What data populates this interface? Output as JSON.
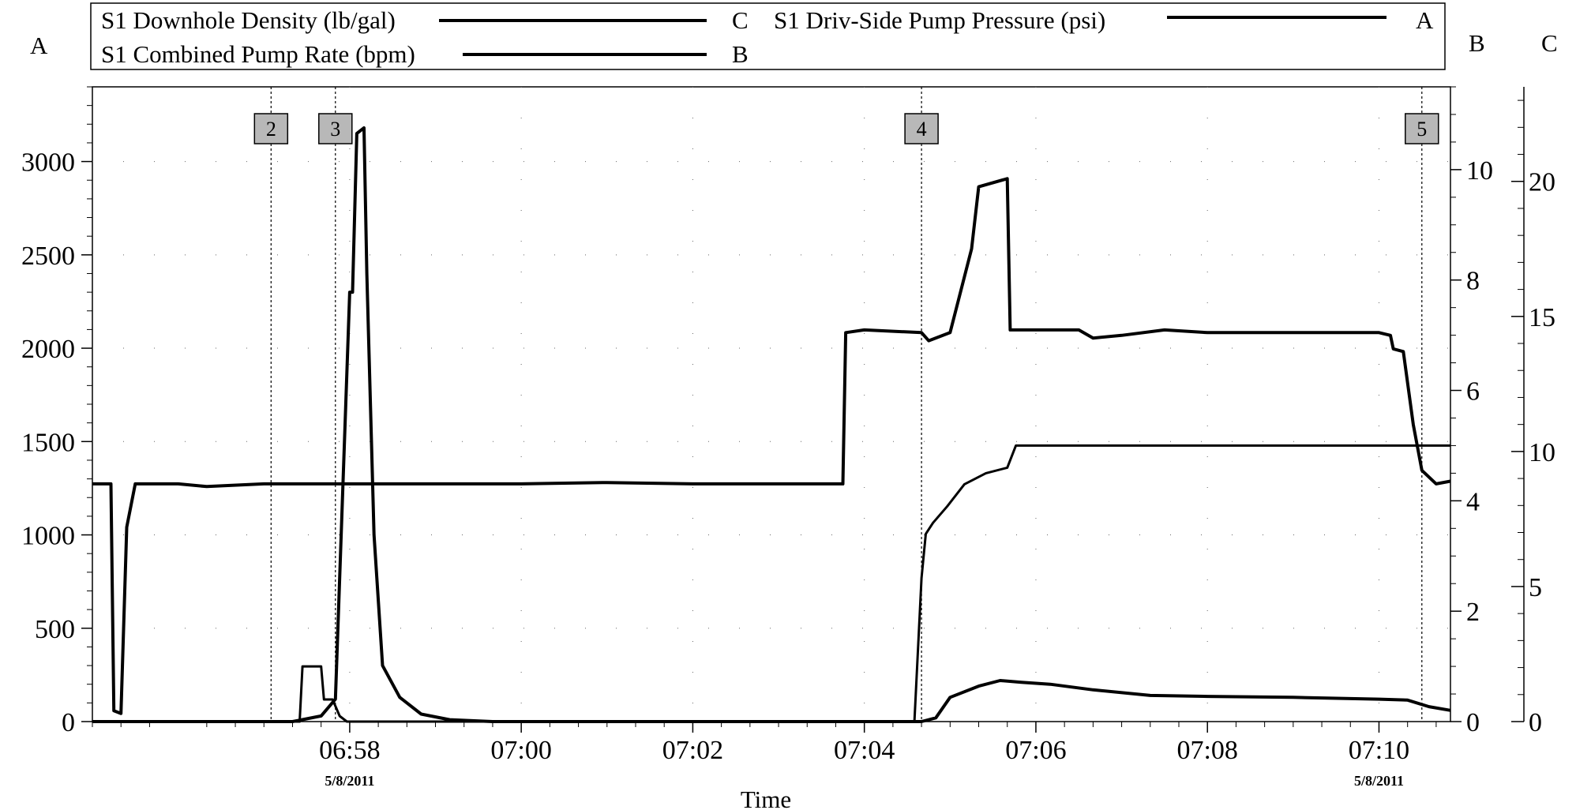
{
  "chart_data": {
    "type": "line",
    "xlabel": "Time",
    "legend": {
      "placement": "top",
      "entries": [
        {
          "name": "S1 Downhole Density (lb/gal)",
          "axis": "C"
        },
        {
          "name": "S1 Driv-Side Pump Pressure (psi)",
          "axis": "A"
        },
        {
          "name": "S1 Combined Pump Rate (bpm)",
          "axis": "B"
        }
      ]
    },
    "axes": {
      "x": {
        "range": [
          "06:55:00",
          "07:10:50"
        ],
        "ticks": [
          "06:58",
          "07:00",
          "07:02",
          "07:04",
          "07:06",
          "07:08",
          "07:10"
        ],
        "date_labels": [
          {
            "at": "06:58",
            "text": "5/8/2011"
          },
          {
            "at": "07:10",
            "text": "5/8/2011"
          }
        ]
      },
      "A": {
        "label": "A",
        "side": "left",
        "range": [
          0,
          3400
        ],
        "ticks": [
          0,
          500,
          1000,
          1500,
          2000,
          2500,
          3000
        ],
        "tick_labels": [
          "0",
          "500",
          "1000",
          "1500",
          "2000",
          "2500",
          "3000"
        ]
      },
      "B": {
        "label": "B",
        "side": "right",
        "range": [
          0,
          11.5
        ],
        "ticks": [
          0,
          2,
          4,
          6,
          8,
          10
        ]
      },
      "C": {
        "label": "C",
        "side": "right",
        "range": [
          0,
          23.5
        ],
        "ticks": [
          0,
          5,
          10,
          15,
          20
        ]
      }
    },
    "grid": "dotted",
    "markers": [
      {
        "label": "2",
        "x": "06:57:05"
      },
      {
        "label": "3",
        "x": "06:57:50"
      },
      {
        "label": "4",
        "x": "07:04:40"
      },
      {
        "label": "5",
        "x": "07:10:30"
      }
    ],
    "series": [
      {
        "name": "S1 Downhole Density (lb/gal)",
        "axis": "C",
        "points": [
          [
            "06:55:00",
            8.8
          ],
          [
            "06:55:13",
            8.8
          ],
          [
            "06:55:15",
            0.4
          ],
          [
            "06:55:20",
            0.3
          ],
          [
            "06:55:24",
            7.2
          ],
          [
            "06:55:30",
            8.8
          ],
          [
            "06:56:00",
            8.8
          ],
          [
            "06:56:20",
            8.7
          ],
          [
            "06:57:00",
            8.8
          ],
          [
            "06:58:00",
            8.8
          ],
          [
            "07:00:00",
            8.8
          ],
          [
            "07:01:00",
            8.85
          ],
          [
            "07:02:00",
            8.8
          ],
          [
            "07:03:00",
            8.8
          ],
          [
            "07:03:45",
            8.8
          ],
          [
            "07:03:47",
            14.4
          ],
          [
            "07:04:00",
            14.5
          ],
          [
            "07:04:40",
            14.4
          ],
          [
            "07:04:45",
            14.1
          ],
          [
            "07:05:00",
            14.4
          ],
          [
            "07:05:15",
            17.5
          ],
          [
            "07:05:20",
            19.8
          ],
          [
            "07:05:40",
            20.1
          ],
          [
            "07:05:42",
            14.5
          ],
          [
            "07:06:00",
            14.5
          ],
          [
            "07:06:30",
            14.5
          ],
          [
            "07:06:40",
            14.2
          ],
          [
            "07:07:00",
            14.3
          ],
          [
            "07:07:30",
            14.5
          ],
          [
            "07:08:00",
            14.4
          ],
          [
            "07:09:00",
            14.4
          ],
          [
            "07:10:00",
            14.4
          ],
          [
            "07:10:08",
            14.3
          ],
          [
            "07:10:10",
            13.8
          ],
          [
            "07:10:17",
            13.7
          ],
          [
            "07:10:24",
            11.0
          ],
          [
            "07:10:30",
            9.3
          ],
          [
            "07:10:40",
            8.8
          ],
          [
            "07:10:50",
            8.9
          ]
        ]
      },
      {
        "name": "S1 Driv-Side Pump Pressure (psi)",
        "axis": "A",
        "points": [
          [
            "06:55:00",
            0
          ],
          [
            "06:57:20",
            0
          ],
          [
            "06:57:40",
            30
          ],
          [
            "06:57:50",
            120
          ],
          [
            "06:58:00",
            2300
          ],
          [
            "06:58:02",
            2300
          ],
          [
            "06:58:05",
            3150
          ],
          [
            "06:58:10",
            3180
          ],
          [
            "06:58:12",
            2400
          ],
          [
            "06:58:17",
            1000
          ],
          [
            "06:58:23",
            300
          ],
          [
            "06:58:35",
            130
          ],
          [
            "06:58:50",
            40
          ],
          [
            "06:59:10",
            10
          ],
          [
            "06:59:40",
            0
          ],
          [
            "07:04:40",
            0
          ],
          [
            "07:04:50",
            20
          ],
          [
            "07:05:00",
            130
          ],
          [
            "07:05:20",
            190
          ],
          [
            "07:05:35",
            220
          ],
          [
            "07:05:50",
            210
          ],
          [
            "07:06:10",
            200
          ],
          [
            "07:06:40",
            170
          ],
          [
            "07:07:20",
            140
          ],
          [
            "07:08:00",
            135
          ],
          [
            "07:09:00",
            130
          ],
          [
            "07:10:00",
            120
          ],
          [
            "07:10:20",
            115
          ],
          [
            "07:10:35",
            80
          ],
          [
            "07:10:50",
            60
          ]
        ]
      },
      {
        "name": "S1 Combined Pump Rate (bpm)",
        "axis": "B",
        "points": [
          [
            "06:55:00",
            0
          ],
          [
            "06:57:25",
            0
          ],
          [
            "06:57:27",
            1.0
          ],
          [
            "06:57:40",
            1.0
          ],
          [
            "06:57:42",
            0.4
          ],
          [
            "06:57:48",
            0.4
          ],
          [
            "06:57:53",
            0.1
          ],
          [
            "06:57:58",
            0.0
          ],
          [
            "07:04:35",
            0.0
          ],
          [
            "07:04:40",
            2.6
          ],
          [
            "07:04:43",
            3.4
          ],
          [
            "07:04:48",
            3.6
          ],
          [
            "07:04:58",
            3.9
          ],
          [
            "07:05:10",
            4.3
          ],
          [
            "07:05:25",
            4.5
          ],
          [
            "07:05:40",
            4.6
          ],
          [
            "07:05:46",
            5.0
          ],
          [
            "07:06:00",
            5.0
          ],
          [
            "07:10:50",
            5.0
          ]
        ]
      }
    ]
  }
}
